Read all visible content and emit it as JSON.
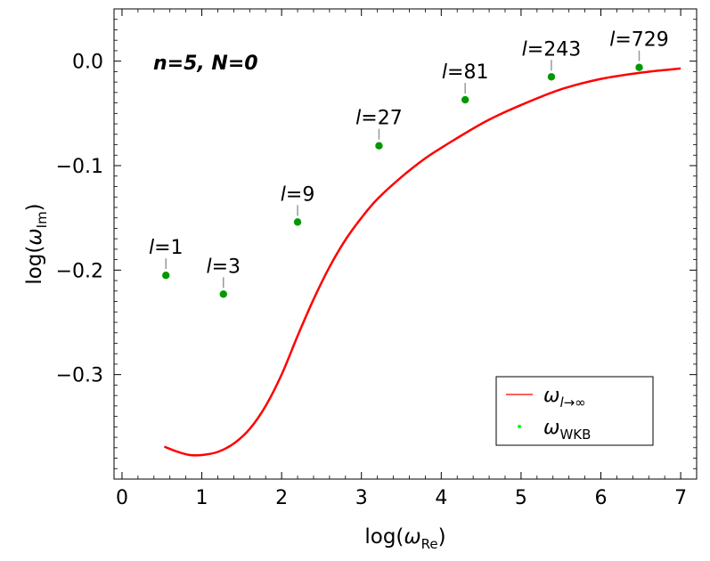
{
  "chart_data": {
    "type": "line",
    "inset_label": "n=5, N=0",
    "xlabel": {
      "prefix": "log(",
      "symbol": "ω",
      "sub": "Re",
      "suffix": ")"
    },
    "ylabel": {
      "prefix": "log(",
      "symbol": "ω",
      "sub": "Im",
      "suffix": ")"
    },
    "xlim": [
      -0.1,
      7.2
    ],
    "ylim": [
      -0.4,
      0.05
    ],
    "xticks": [
      0,
      1,
      2,
      3,
      4,
      5,
      6,
      7
    ],
    "yticks": [
      -0.3,
      -0.2,
      -0.1,
      0.0
    ],
    "ytick_labels": [
      "−0.3",
      "−0.2",
      "−0.1",
      "0.0"
    ],
    "series": [
      {
        "name": "ω_{l→∞}",
        "kind": "line",
        "color": "#ff0000",
        "x": [
          0.53,
          0.7,
          0.85,
          1.0,
          1.2,
          1.4,
          1.6,
          1.8,
          2.0,
          2.2,
          2.4,
          2.6,
          2.8,
          3.0,
          3.2,
          3.5,
          3.8,
          4.0,
          4.3,
          4.6,
          5.0,
          5.5,
          6.0,
          6.5,
          7.0
        ],
        "y": [
          -0.369,
          -0.374,
          -0.377,
          -0.377,
          -0.374,
          -0.366,
          -0.352,
          -0.33,
          -0.3,
          -0.263,
          -0.228,
          -0.197,
          -0.171,
          -0.15,
          -0.132,
          -0.111,
          -0.093,
          -0.083,
          -0.069,
          -0.056,
          -0.042,
          -0.027,
          -0.017,
          -0.011,
          -0.007
        ]
      },
      {
        "name": "ω_WKB",
        "kind": "scatter",
        "color": "#009900",
        "points": [
          {
            "x": 0.55,
            "y": -0.205,
            "label": "=1"
          },
          {
            "x": 1.27,
            "y": -0.223,
            "label": "=3"
          },
          {
            "x": 2.2,
            "y": -0.154,
            "label": "=9"
          },
          {
            "x": 3.22,
            "y": -0.081,
            "label": "=27"
          },
          {
            "x": 4.3,
            "y": -0.037,
            "label": "=81"
          },
          {
            "x": 5.38,
            "y": -0.015,
            "label": "=243"
          },
          {
            "x": 6.48,
            "y": -0.006,
            "label": "=729"
          }
        ]
      }
    ],
    "annotation_prefix": "l",
    "legend": {
      "position": "bottom-right",
      "entries": [
        {
          "symbol": "ω",
          "sub": "l→∞",
          "marker": "line",
          "color": "#ff0000"
        },
        {
          "symbol": "ω",
          "sub": "WKB",
          "marker": "point",
          "color": "#00ff00"
        }
      ]
    }
  }
}
